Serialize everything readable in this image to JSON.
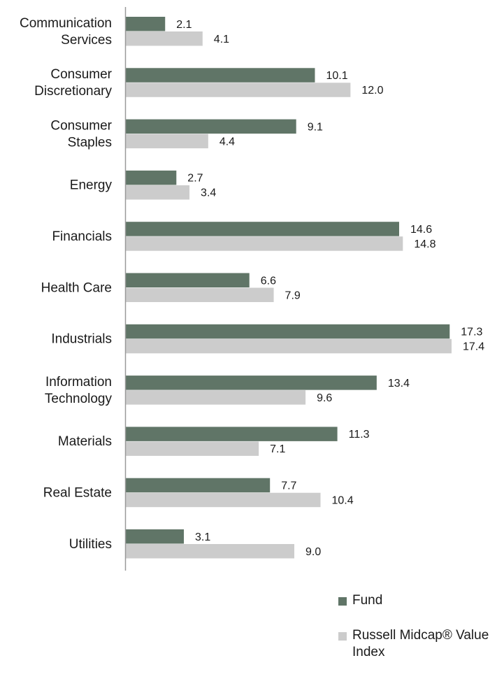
{
  "colors": {
    "fund": "#607567",
    "index": "#cccccc",
    "axis": "#999999"
  },
  "legend": {
    "fund": "Fund",
    "index": "Russell Midcap® Value Index"
  },
  "chart_data": {
    "type": "bar",
    "orientation": "horizontal",
    "categories": [
      [
        "Communication",
        "Services"
      ],
      [
        "Consumer",
        "Discretionary"
      ],
      [
        "Consumer",
        "Staples"
      ],
      [
        "Energy"
      ],
      [
        "Financials"
      ],
      [
        "Health Care"
      ],
      [
        "Industrials"
      ],
      [
        "Information",
        "Technology"
      ],
      [
        "Materials"
      ],
      [
        "Real Estate"
      ],
      [
        "Utilities"
      ]
    ],
    "series": [
      {
        "name": "Fund",
        "values": [
          2.1,
          10.1,
          9.1,
          2.7,
          14.6,
          6.6,
          17.3,
          13.4,
          11.3,
          7.7,
          3.1
        ],
        "labels": [
          "2.1",
          "10.1",
          "9.1",
          "2.7",
          "14.6",
          "6.6",
          "17.3",
          "13.4",
          "11.3",
          "7.7",
          "3.1"
        ]
      },
      {
        "name": "Russell Midcap® Value Index",
        "values": [
          4.1,
          12.0,
          4.4,
          3.4,
          14.8,
          7.9,
          17.4,
          9.6,
          7.1,
          10.4,
          9.0
        ],
        "labels": [
          "4.1",
          "12.0",
          "4.4",
          "3.4",
          "14.8",
          "7.9",
          "17.4",
          "9.6",
          "7.1",
          "10.4",
          "9.0"
        ]
      }
    ],
    "xlim": [
      0,
      17.4
    ],
    "grid": false,
    "legend_position": "bottom-right"
  }
}
